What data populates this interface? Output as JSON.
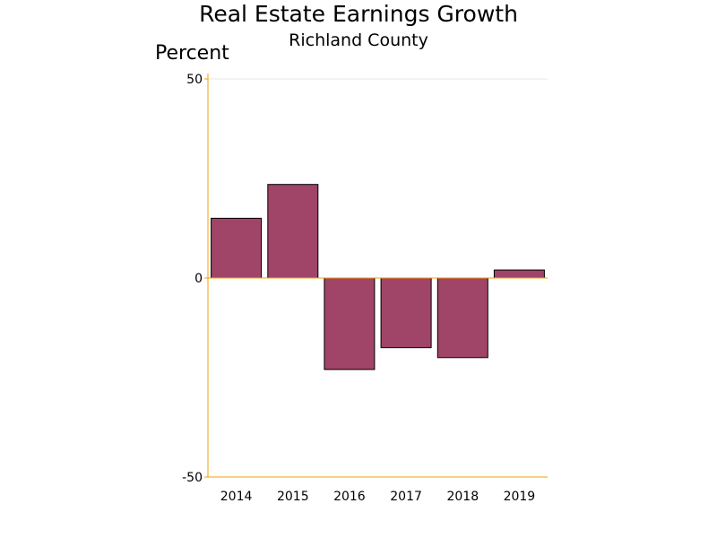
{
  "chart_data": {
    "type": "bar",
    "title": "Real Estate Earnings Growth",
    "subtitle": "Richland County",
    "xlabel": "",
    "ylabel": "Percent",
    "categories": [
      "2014",
      "2015",
      "2016",
      "2017",
      "2018",
      "2019"
    ],
    "values": [
      15,
      23.5,
      -23,
      -17.5,
      -20,
      2
    ],
    "ylim": [
      -50,
      50
    ],
    "yticks": [
      "50",
      "0",
      "-50"
    ],
    "grid": true,
    "legend": "none",
    "colors": {
      "bar_fill": "#a04468",
      "bar_stroke": "#000000",
      "axis": "#f0a000",
      "grid": "#e6e6e6",
      "zero_line": "#f0a000"
    }
  }
}
